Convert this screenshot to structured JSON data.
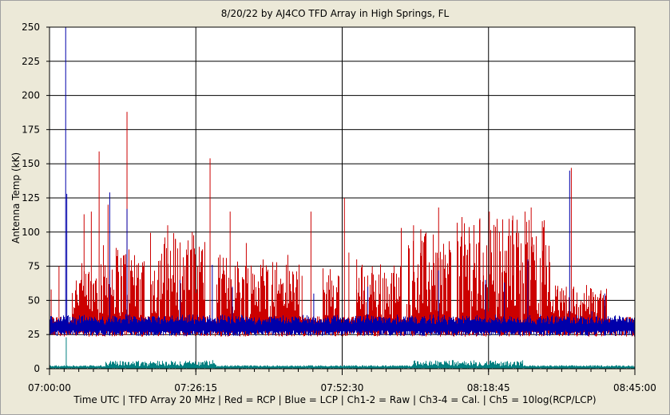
{
  "chart_data": {
    "type": "line",
    "title": "8/20/22  by  AJ4CO TFD Array  in  High Springs, FL",
    "ylabel": "Antenna Temp (kK)",
    "xlabel": "Time UTC | TFD Array 20 MHz | Red = RCP | Blue = LCP | Ch1-2 = Raw | Ch3-4 = Cal. | Ch5 = 10log(RCP/LCP)",
    "ylim": [
      0,
      250
    ],
    "yticks": [
      "250",
      "225",
      "200",
      "175",
      "150",
      "125",
      "100",
      "75",
      "50",
      "25",
      "0"
    ],
    "xticks": [
      "07:00:00",
      "07:26:15",
      "07:52:30",
      "08:18:45",
      "08:45:00"
    ],
    "xlim_minutes": [
      0,
      105
    ],
    "grid": true,
    "colors": {
      "rcp": "#cc0000",
      "lcp": "#0000aa",
      "ratio": "#008080",
      "background": "#ffffff",
      "grid": "#000000"
    },
    "series": [
      {
        "name": "Red = RCP",
        "baseline": 31,
        "spikes_minutes_value": [
          [
            0.3,
            58
          ],
          [
            1.7,
            75
          ],
          [
            6.2,
            113
          ],
          [
            7.5,
            115
          ],
          [
            8.9,
            159
          ],
          [
            10.5,
            120
          ],
          [
            12.8,
            67
          ],
          [
            13.9,
            188
          ],
          [
            21.2,
            105
          ],
          [
            22.6,
            95
          ],
          [
            24.3,
            75
          ],
          [
            25.6,
            100
          ],
          [
            26.0,
            88
          ],
          [
            28.8,
            154
          ],
          [
            32.4,
            115
          ],
          [
            35.3,
            92
          ],
          [
            38.4,
            60
          ],
          [
            41.8,
            62
          ],
          [
            45.3,
            68
          ],
          [
            46.9,
            115
          ],
          [
            52.9,
            125
          ],
          [
            53.7,
            85
          ],
          [
            55.1,
            80
          ],
          [
            57.9,
            75
          ],
          [
            63.1,
            103
          ],
          [
            65.3,
            105
          ],
          [
            66.6,
            102
          ],
          [
            69.3,
            85
          ],
          [
            69.8,
            118
          ],
          [
            75.3,
            98
          ],
          [
            77.2,
            110
          ],
          [
            77.8,
            85
          ],
          [
            78.9,
            115
          ],
          [
            80.7,
            100
          ],
          [
            82.4,
            93
          ],
          [
            83.1,
            112
          ],
          [
            84.4,
            72
          ],
          [
            85.3,
            115
          ],
          [
            86.4,
            118
          ],
          [
            88.4,
            108
          ],
          [
            92.7,
            60
          ],
          [
            93.6,
            147
          ],
          [
            97.3,
            48
          ],
          [
            99.6,
            40
          ]
        ]
      },
      {
        "name": "Blue = LCP",
        "baseline": 30,
        "spikes_minutes_value": [
          [
            2.9,
            250
          ],
          [
            3.1,
            128
          ],
          [
            10.8,
            129
          ],
          [
            13.9,
            117
          ],
          [
            23.4,
            65
          ],
          [
            29.2,
            76
          ],
          [
            32.8,
            60
          ],
          [
            47.4,
            55
          ],
          [
            57.1,
            60
          ],
          [
            69.8,
            72
          ],
          [
            78.2,
            65
          ],
          [
            81.6,
            63
          ],
          [
            85.8,
            80
          ],
          [
            93.3,
            145
          ],
          [
            97.3,
            42
          ],
          [
            99.6,
            55
          ]
        ]
      },
      {
        "name": "Ch5 = 10log(RCP/LCP)",
        "baseline": 1,
        "spikes_minutes_value": [
          [
            3.0,
            23
          ]
        ]
      }
    ]
  }
}
